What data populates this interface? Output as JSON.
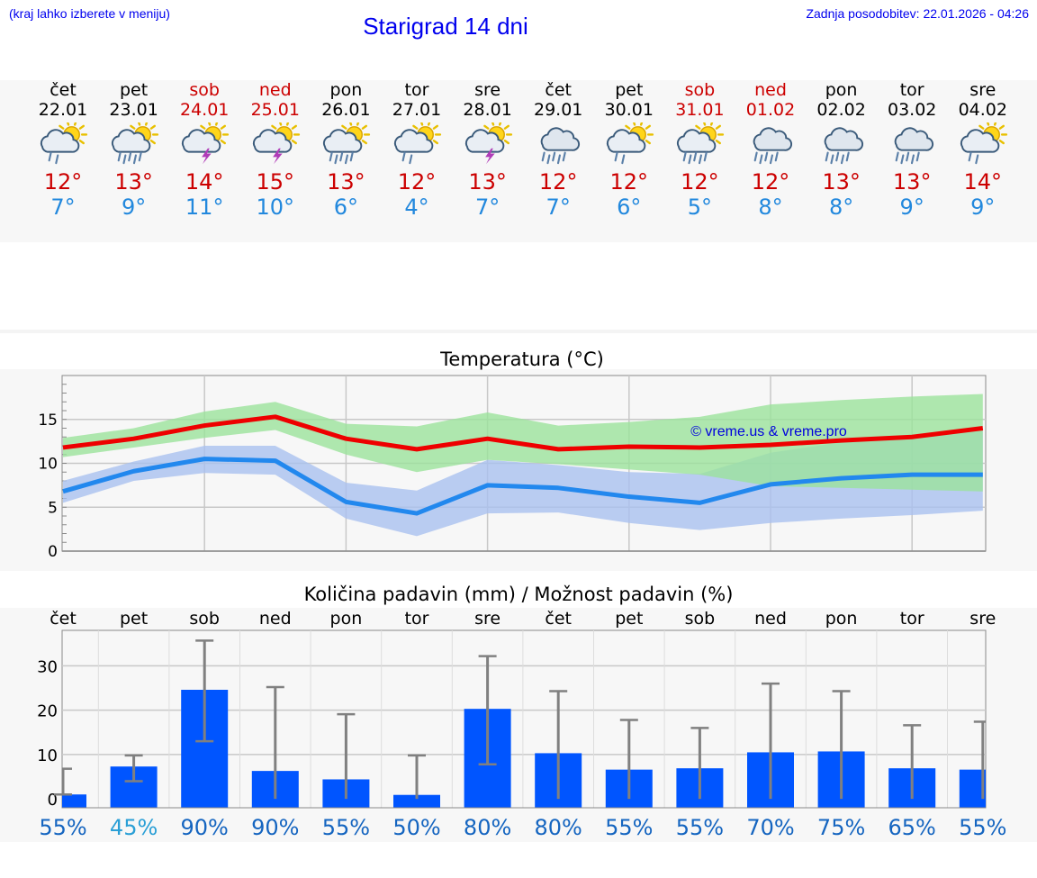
{
  "header": {
    "note_left": "(kraj lahko izberete v meniju)",
    "title": "Starigrad 14 dni",
    "updated": "Zadnja posodobitev: 22.01.2026 - 04:26"
  },
  "colors": {
    "max_temp": "#cc0000",
    "min_temp": "#2288dd",
    "weekend": "#cc0000",
    "max_line": "#ee0000",
    "max_band": "#9ae39a",
    "min_line": "#2288ee",
    "min_band": "#a8c0f0",
    "bar": "#0055ff",
    "error_bar": "#808080"
  },
  "days": [
    {
      "name": "čet",
      "date": "22.01",
      "icon": "sun-cloud-rain-icon",
      "tmax": "12°",
      "tmin": "7°",
      "weekend": false
    },
    {
      "name": "pet",
      "date": "23.01",
      "icon": "sun-cloud-heavy-rain-icon",
      "tmax": "13°",
      "tmin": "9°",
      "weekend": false
    },
    {
      "name": "sob",
      "date": "24.01",
      "icon": "sun-cloud-thunder-icon",
      "tmax": "14°",
      "tmin": "11°",
      "weekend": true
    },
    {
      "name": "ned",
      "date": "25.01",
      "icon": "sun-cloud-thunder-icon",
      "tmax": "15°",
      "tmin": "10°",
      "weekend": true
    },
    {
      "name": "pon",
      "date": "26.01",
      "icon": "sun-cloud-heavy-rain-icon",
      "tmax": "13°",
      "tmin": "6°",
      "weekend": false
    },
    {
      "name": "tor",
      "date": "27.01",
      "icon": "sun-cloud-rain-icon",
      "tmax": "12°",
      "tmin": "4°",
      "weekend": false
    },
    {
      "name": "sre",
      "date": "28.01",
      "icon": "sun-cloud-thunder-icon",
      "tmax": "13°",
      "tmin": "7°",
      "weekend": false
    },
    {
      "name": "čet",
      "date": "29.01",
      "icon": "cloud-heavy-rain-icon",
      "tmax": "12°",
      "tmin": "7°",
      "weekend": false
    },
    {
      "name": "pet",
      "date": "30.01",
      "icon": "sun-cloud-rain-icon",
      "tmax": "12°",
      "tmin": "6°",
      "weekend": false
    },
    {
      "name": "sob",
      "date": "31.01",
      "icon": "sun-cloud-heavy-rain-icon",
      "tmax": "12°",
      "tmin": "5°",
      "weekend": true
    },
    {
      "name": "ned",
      "date": "01.02",
      "icon": "cloud-heavy-rain-icon",
      "tmax": "12°",
      "tmin": "8°",
      "weekend": true
    },
    {
      "name": "pon",
      "date": "02.02",
      "icon": "cloud-heavy-rain-icon",
      "tmax": "13°",
      "tmin": "8°",
      "weekend": false
    },
    {
      "name": "tor",
      "date": "03.02",
      "icon": "cloud-heavy-rain-icon",
      "tmax": "13°",
      "tmin": "9°",
      "weekend": false
    },
    {
      "name": "sre",
      "date": "04.02",
      "icon": "sun-cloud-rain-icon",
      "tmax": "14°",
      "tmin": "9°",
      "weekend": false
    }
  ],
  "chart_data": [
    {
      "type": "line",
      "title": "Temperatura (°C)",
      "xlabel": "",
      "ylabel": "",
      "x": [
        "22.01",
        "23.01",
        "24.01",
        "25.01",
        "26.01",
        "27.01",
        "28.01",
        "29.01",
        "30.01",
        "31.01",
        "01.02",
        "02.02",
        "03.02",
        "04.02"
      ],
      "ylim": [
        0,
        20
      ],
      "yticks": [
        "0",
        "5",
        "10",
        "15"
      ],
      "grid": true,
      "watermark": "© vreme.us & vreme.pro",
      "series": [
        {
          "name": "max",
          "values": [
            11.8,
            12.8,
            14.3,
            15.3,
            12.8,
            11.6,
            12.8,
            11.6,
            11.9,
            11.8,
            12.1,
            12.6,
            13.0,
            14.0
          ],
          "band_low": [
            10.7,
            11.8,
            12.9,
            13.8,
            11.0,
            9.0,
            10.4,
            9.9,
            9.3,
            8.7,
            7.4,
            7.2,
            7.0,
            6.8
          ],
          "band_high": [
            12.9,
            14.0,
            15.9,
            17.0,
            14.5,
            14.2,
            15.8,
            14.3,
            14.7,
            15.3,
            16.7,
            17.2,
            17.6,
            17.9
          ]
        },
        {
          "name": "min",
          "values": [
            6.8,
            9.1,
            10.5,
            10.3,
            5.6,
            4.3,
            7.5,
            7.2,
            6.2,
            5.5,
            7.6,
            8.3,
            8.7,
            8.7
          ],
          "band_low": [
            5.5,
            8.0,
            8.9,
            8.7,
            3.7,
            1.7,
            4.3,
            4.4,
            3.2,
            2.4,
            3.2,
            3.7,
            4.1,
            4.6
          ],
          "band_high": [
            8.0,
            10.2,
            12.0,
            12.0,
            7.8,
            6.9,
            10.4,
            9.8,
            9.0,
            8.8,
            11.2,
            12.4,
            13.0,
            13.9
          ]
        }
      ]
    },
    {
      "type": "bar",
      "title": "Količina padavin (mm) / Možnost padavin (%)",
      "xlabel": "",
      "ylabel": "",
      "categories": [
        "čet",
        "pet",
        "sob",
        "ned",
        "pon",
        "tor",
        "sre",
        "čet",
        "pet",
        "sob",
        "ned",
        "pon",
        "tor",
        "sre"
      ],
      "ylim": [
        -2,
        38
      ],
      "yticks": [
        "0",
        "10",
        "20",
        "30"
      ],
      "values": [
        1.0,
        7.3,
        24.6,
        6.3,
        4.4,
        0.9,
        20.3,
        10.3,
        6.6,
        6.9,
        10.5,
        10.7,
        6.9,
        6.6
      ],
      "err_low": [
        1.0,
        4.0,
        13.0,
        0.0,
        0.0,
        0.0,
        7.8,
        0.0,
        0.0,
        0.0,
        0.0,
        0.0,
        0.0,
        0.0
      ],
      "err_high": [
        6.8,
        9.8,
        35.7,
        25.2,
        19.1,
        9.8,
        32.2,
        24.3,
        17.8,
        16.0,
        26.0,
        24.3,
        16.6,
        17.4
      ],
      "chance": [
        "55%",
        "45%",
        "90%",
        "90%",
        "55%",
        "50%",
        "80%",
        "80%",
        "55%",
        "55%",
        "70%",
        "75%",
        "65%",
        "55%"
      ],
      "chance_colors": [
        "#1565c0",
        "#2a9fd6",
        "#1565c0",
        "#1565c0",
        "#1565c0",
        "#1565c0",
        "#1565c0",
        "#1565c0",
        "#1565c0",
        "#1565c0",
        "#1565c0",
        "#1565c0",
        "#1565c0",
        "#1565c0"
      ]
    }
  ]
}
